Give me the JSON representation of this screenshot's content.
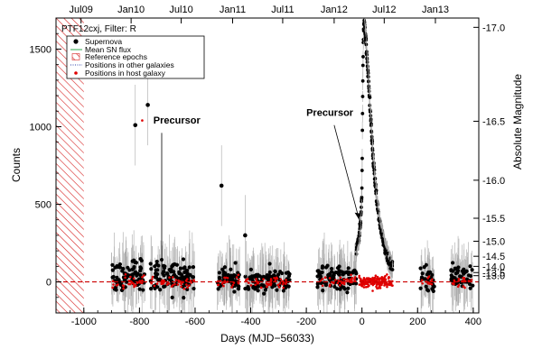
{
  "chart_data": {
    "type": "scatter",
    "header": "PTF12cxj, Filter:  R",
    "xlabel": "Days (MJD−56033)",
    "ylabel_left": "Counts",
    "ylabel_right": "Absolute Magnitude",
    "xlim": [
      -1100,
      420
    ],
    "ylim": [
      -200,
      1700
    ],
    "x_ticks": [
      "-1000",
      "-800",
      "-600",
      "-400",
      "-200",
      "0",
      "200",
      "400"
    ],
    "y_ticks": [
      "0",
      "500",
      "1000",
      "1500"
    ],
    "top_axis_labels": [
      "Jul09",
      "Jan10",
      "Jul10",
      "Jan11",
      "Jul11",
      "Jan12",
      "Jul12",
      "Jan13"
    ],
    "top_axis_positions": [
      -1010,
      -830,
      -650,
      -465,
      -285,
      -100,
      80,
      264
    ],
    "right_axis": [
      {
        "label": "-17.0",
        "counts": 1640
      },
      {
        "label": "-16.5",
        "counts": 1035
      },
      {
        "label": "-16.0",
        "counts": 655
      },
      {
        "label": "-15.5",
        "counts": 410
      },
      {
        "label": "-15.0",
        "counts": 262
      },
      {
        "label": "-14.5",
        "counts": 165
      },
      {
        "label": "-14.0",
        "counts": 100
      },
      {
        "label": "-13.5",
        "counts": 60
      },
      {
        "label": "-13.0",
        "counts": 40
      }
    ],
    "reference_epochs": {
      "x": [
        -1100,
        -1000
      ],
      "label": "Reference epochs"
    },
    "mean_sn_flux": {
      "y": 0,
      "label": "Mean SN flux"
    },
    "legend": [
      "Supernova",
      "Mean SN flux",
      "Reference epochs",
      "Positions in other galaxies",
      "Positions in host galaxy"
    ],
    "legend_position": "upper-left",
    "annotations": [
      {
        "text": "Precursor",
        "text_x": -750,
        "text_y": 1020,
        "line_from": [
          -720,
          960
        ],
        "line_to": [
          -720,
          40
        ]
      },
      {
        "text": "Precursor",
        "text_x": -200,
        "text_y": 1070,
        "line_from": [
          -100,
          1010
        ],
        "line_to": [
          -10,
          400
        ]
      }
    ],
    "seasons": [
      {
        "x": [
          -900,
          -780
        ],
        "mean": 40,
        "spread": 120
      },
      {
        "x": [
          -760,
          -600
        ],
        "mean": 30,
        "spread": 140
      },
      {
        "x": [
          -520,
          -440
        ],
        "mean": 20,
        "spread": 110
      },
      {
        "x": [
          -420,
          -260
        ],
        "mean": 10,
        "spread": 100
      },
      {
        "x": [
          -160,
          -20
        ],
        "mean": 30,
        "spread": 110
      },
      {
        "x": [
          210,
          260
        ],
        "mean": 20,
        "spread": 100
      },
      {
        "x": [
          320,
          400
        ],
        "mean": 30,
        "spread": 110
      }
    ],
    "outliers": [
      {
        "x": -815,
        "y": 1010
      },
      {
        "x": -770,
        "y": 1140
      },
      {
        "x": -505,
        "y": 620
      },
      {
        "x": -420,
        "y": 300
      }
    ],
    "red_outliers": [
      {
        "x": -790,
        "y": 1040
      }
    ],
    "sn_curve": [
      {
        "x": -20,
        "y": 200
      },
      {
        "x": -10,
        "y": 300
      },
      {
        "x": -5,
        "y": 380
      },
      {
        "x": 0,
        "y": 600
      },
      {
        "x": 2,
        "y": 1100
      },
      {
        "x": 4,
        "y": 1450
      },
      {
        "x": 6,
        "y": 1620
      },
      {
        "x": 8,
        "y": 1670
      },
      {
        "x": 12,
        "y": 1600
      },
      {
        "x": 16,
        "y": 1500
      },
      {
        "x": 20,
        "y": 1380
      },
      {
        "x": 25,
        "y": 1250
      },
      {
        "x": 30,
        "y": 1100
      },
      {
        "x": 35,
        "y": 950
      },
      {
        "x": 40,
        "y": 800
      },
      {
        "x": 50,
        "y": 580
      },
      {
        "x": 60,
        "y": 420
      },
      {
        "x": 70,
        "y": 330
      },
      {
        "x": 80,
        "y": 240
      },
      {
        "x": 90,
        "y": 180
      },
      {
        "x": 100,
        "y": 130
      },
      {
        "x": 110,
        "y": 100
      }
    ]
  }
}
